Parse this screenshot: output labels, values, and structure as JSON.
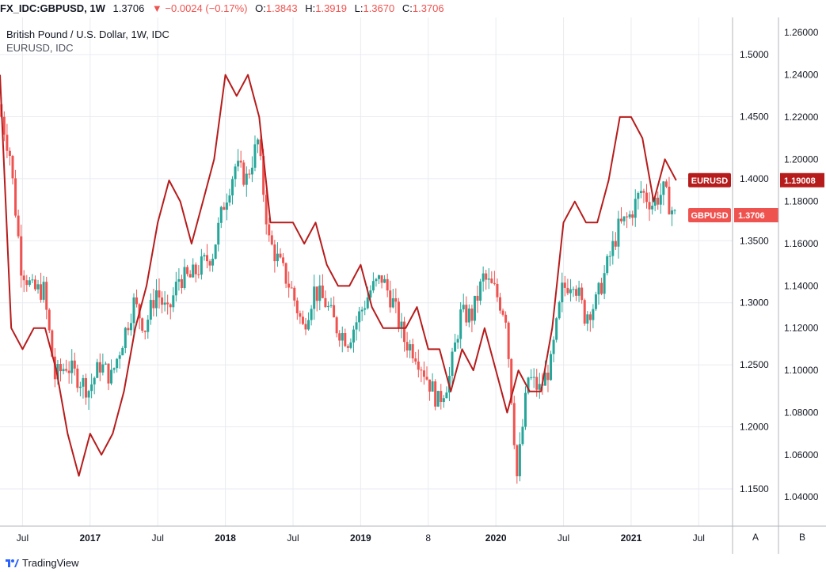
{
  "header": {
    "symbol": "FX_IDC:GBPUSD, 1W",
    "last": "1.3706",
    "change": "▼ −0.0024 (−0.17%)",
    "o_label": "O:",
    "o_value": "1.3843",
    "h_label": "H:",
    "h_value": "1.3919",
    "l_label": "L:",
    "l_value": "1.3670",
    "c_label": "C:",
    "c_value": "1.3706"
  },
  "footer": {
    "brand": "TradingView",
    "logo_icon": "tradingview-logo-icon"
  },
  "axis_buttons": {
    "left": "A",
    "right": "B"
  },
  "chart_data": {
    "type": "line",
    "title": "British Pound / U.S. Dollar, 1W, IDC",
    "subtitle": "EURUSD, IDC",
    "x_ticks": [
      "Jul",
      "2017",
      "Jul",
      "2018",
      "Jul",
      "2019",
      "8",
      "2020",
      "Jul",
      "2021",
      "Jul"
    ],
    "x_range": [
      "2016-05",
      "2021-10"
    ],
    "grid": true,
    "left_axis": {
      "name": "GBPUSD",
      "range": [
        1.12,
        1.53
      ],
      "ticks": [
        "1.1500",
        "1.2000",
        "1.2500",
        "1.3000",
        "1.3500",
        "1.4000",
        "1.4500",
        "1.5000"
      ]
    },
    "right_axis": {
      "name": "EURUSD",
      "range": [
        1.0262,
        1.2672
      ],
      "ticks": [
        "1.04000",
        "1.06000",
        "1.08000",
        "1.10000",
        "1.12000",
        "1.14000",
        "1.16000",
        "1.18000",
        "1.20000",
        "1.22000",
        "1.24000",
        "1.26000"
      ]
    },
    "series": [
      {
        "name": "GBPUSD",
        "type": "candlestick",
        "up_color": "#26a69a",
        "down_color": "#ef5350",
        "price_tag": "1.3706",
        "points": [
          [
            "2016-05",
            1.46
          ],
          [
            "2016-06",
            1.42
          ],
          [
            "2016-07",
            1.33
          ],
          [
            "2016-08",
            1.31
          ],
          [
            "2016-09",
            1.31
          ],
          [
            "2016-10",
            1.24
          ],
          [
            "2016-11",
            1.25
          ],
          [
            "2016-12",
            1.24
          ],
          [
            "2017-01",
            1.23
          ],
          [
            "2017-02",
            1.25
          ],
          [
            "2017-03",
            1.24
          ],
          [
            "2017-04",
            1.27
          ],
          [
            "2017-05",
            1.3
          ],
          [
            "2017-06",
            1.28
          ],
          [
            "2017-07",
            1.31
          ],
          [
            "2017-08",
            1.29
          ],
          [
            "2017-09",
            1.32
          ],
          [
            "2017-10",
            1.32
          ],
          [
            "2017-11",
            1.33
          ],
          [
            "2017-12",
            1.34
          ],
          [
            "2018-01",
            1.38
          ],
          [
            "2018-02",
            1.41
          ],
          [
            "2018-03",
            1.4
          ],
          [
            "2018-04",
            1.43
          ],
          [
            "2018-05",
            1.35
          ],
          [
            "2018-06",
            1.33
          ],
          [
            "2018-07",
            1.31
          ],
          [
            "2018-08",
            1.28
          ],
          [
            "2018-09",
            1.31
          ],
          [
            "2018-10",
            1.3
          ],
          [
            "2018-11",
            1.28
          ],
          [
            "2018-12",
            1.27
          ],
          [
            "2019-01",
            1.29
          ],
          [
            "2019-02",
            1.31
          ],
          [
            "2019-03",
            1.32
          ],
          [
            "2019-04",
            1.3
          ],
          [
            "2019-05",
            1.27
          ],
          [
            "2019-06",
            1.26
          ],
          [
            "2019-07",
            1.24
          ],
          [
            "2019-08",
            1.22
          ],
          [
            "2019-09",
            1.24
          ],
          [
            "2019-10",
            1.29
          ],
          [
            "2019-11",
            1.29
          ],
          [
            "2019-12",
            1.32
          ],
          [
            "2020-01",
            1.31
          ],
          [
            "2020-02",
            1.29
          ],
          [
            "2020-03",
            1.16
          ],
          [
            "2020-04",
            1.24
          ],
          [
            "2020-05",
            1.23
          ],
          [
            "2020-06",
            1.25
          ],
          [
            "2020-07",
            1.31
          ],
          [
            "2020-08",
            1.32
          ],
          [
            "2020-09",
            1.29
          ],
          [
            "2020-10",
            1.3
          ],
          [
            "2020-11",
            1.33
          ],
          [
            "2020-12",
            1.36
          ],
          [
            "2021-01",
            1.37
          ],
          [
            "2021-02",
            1.39
          ],
          [
            "2021-03",
            1.38
          ],
          [
            "2021-04",
            1.39
          ],
          [
            "2021-05",
            1.37
          ]
        ]
      },
      {
        "name": "EURUSD",
        "type": "line",
        "color": "#b71c1c",
        "price_tag": "1.19008",
        "points": [
          [
            "2016-05",
            1.24
          ],
          [
            "2016-06",
            1.12
          ],
          [
            "2016-07",
            1.11
          ],
          [
            "2016-08",
            1.12
          ],
          [
            "2016-09",
            1.12
          ],
          [
            "2016-10",
            1.1
          ],
          [
            "2016-11",
            1.07
          ],
          [
            "2016-12",
            1.05
          ],
          [
            "2017-01",
            1.07
          ],
          [
            "2017-02",
            1.06
          ],
          [
            "2017-03",
            1.07
          ],
          [
            "2017-04",
            1.09
          ],
          [
            "2017-05",
            1.12
          ],
          [
            "2017-06",
            1.14
          ],
          [
            "2017-07",
            1.17
          ],
          [
            "2017-08",
            1.19
          ],
          [
            "2017-09",
            1.18
          ],
          [
            "2017-10",
            1.16
          ],
          [
            "2017-11",
            1.18
          ],
          [
            "2017-12",
            1.2
          ],
          [
            "2018-01",
            1.24
          ],
          [
            "2018-02",
            1.23
          ],
          [
            "2018-03",
            1.24
          ],
          [
            "2018-04",
            1.22
          ],
          [
            "2018-05",
            1.17
          ],
          [
            "2018-06",
            1.17
          ],
          [
            "2018-07",
            1.17
          ],
          [
            "2018-08",
            1.16
          ],
          [
            "2018-09",
            1.17
          ],
          [
            "2018-10",
            1.15
          ],
          [
            "2018-11",
            1.14
          ],
          [
            "2018-12",
            1.14
          ],
          [
            "2019-01",
            1.15
          ],
          [
            "2019-02",
            1.13
          ],
          [
            "2019-03",
            1.12
          ],
          [
            "2019-04",
            1.12
          ],
          [
            "2019-05",
            1.12
          ],
          [
            "2019-06",
            1.13
          ],
          [
            "2019-07",
            1.11
          ],
          [
            "2019-08",
            1.11
          ],
          [
            "2019-09",
            1.09
          ],
          [
            "2019-10",
            1.11
          ],
          [
            "2019-11",
            1.1
          ],
          [
            "2019-12",
            1.12
          ],
          [
            "2020-01",
            1.1
          ],
          [
            "2020-02",
            1.08
          ],
          [
            "2020-03",
            1.1
          ],
          [
            "2020-04",
            1.09
          ],
          [
            "2020-05",
            1.09
          ],
          [
            "2020-06",
            1.12
          ],
          [
            "2020-07",
            1.17
          ],
          [
            "2020-08",
            1.18
          ],
          [
            "2020-09",
            1.17
          ],
          [
            "2020-10",
            1.17
          ],
          [
            "2020-11",
            1.19
          ],
          [
            "2020-12",
            1.22
          ],
          [
            "2021-01",
            1.22
          ],
          [
            "2021-02",
            1.21
          ],
          [
            "2021-03",
            1.18
          ],
          [
            "2021-04",
            1.2
          ],
          [
            "2021-05",
            1.19
          ]
        ]
      }
    ]
  }
}
